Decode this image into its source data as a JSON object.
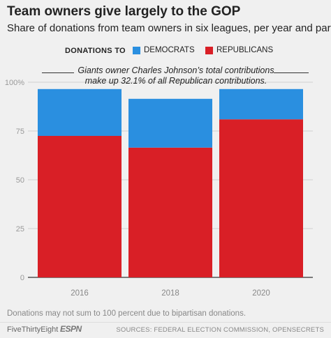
{
  "header": {
    "title": "Team owners give largely to the GOP",
    "subtitle": "Share of donations from team owners in six leagues, per year and party"
  },
  "legend": {
    "title": "DONATIONS TO",
    "items": [
      {
        "label": "DEMOCRATS",
        "color": "#2a8fe0"
      },
      {
        "label": "REPUBLICANS",
        "color": "#d91f26"
      }
    ]
  },
  "annotation": {
    "line1": "Giants owner Charles Johnson’s total contributions",
    "line2": "make up 32.1% of all Republican contributions."
  },
  "chart_data": {
    "type": "bar",
    "stacked": true,
    "categories": [
      "2016",
      "2018",
      "2020"
    ],
    "series": [
      {
        "name": "REPUBLICANS",
        "color": "#d91f26",
        "values": [
          72.5,
          66.5,
          81
        ]
      },
      {
        "name": "DEMOCRATS",
        "color": "#2a8fe0",
        "values": [
          24,
          25,
          15.5
        ]
      }
    ],
    "ylim": [
      0,
      100
    ],
    "yticks": [
      "0",
      "25",
      "50",
      "75",
      "100%"
    ],
    "ytick_values": [
      0,
      25,
      50,
      75,
      100
    ],
    "grid": true,
    "xlabel": "",
    "ylabel": ""
  },
  "footer": {
    "note": "Donations may not sum to 100 percent due to bipartisan donations.",
    "brand": "FiveThirtyEight",
    "partner": "ESPN",
    "sources": "SOURCES: FEDERAL ELECTION COMMISSION, OPENSECRETS"
  }
}
